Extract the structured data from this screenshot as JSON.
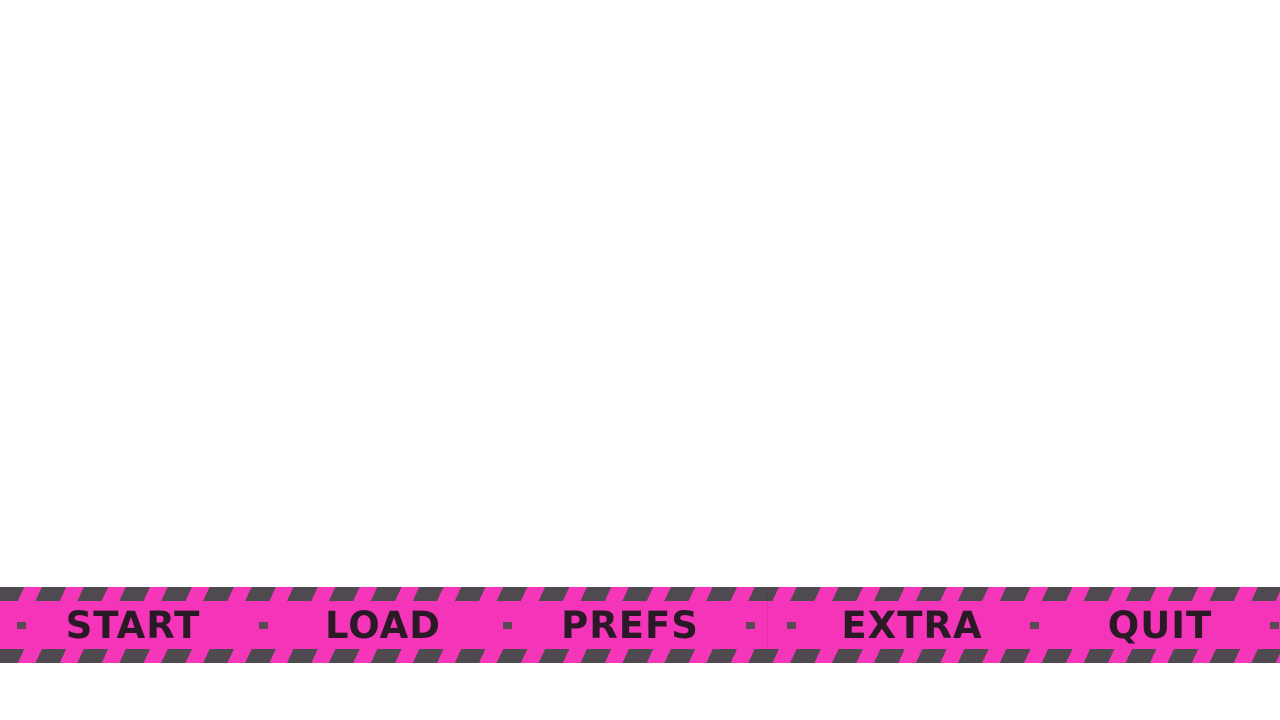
{
  "menu": {
    "items": [
      {
        "label": "START"
      },
      {
        "label": "LOAD"
      },
      {
        "label": "PREFS"
      },
      {
        "label": "EXTRA"
      },
      {
        "label": "QUIT"
      }
    ]
  },
  "colors": {
    "background": "#ffffff",
    "tape": "#f536b8",
    "stripe": "#4e4a4f",
    "text": "#2a1a26"
  }
}
